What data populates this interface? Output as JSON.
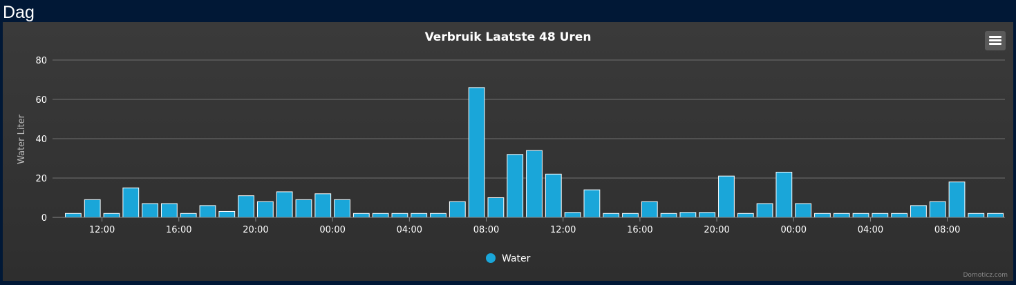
{
  "section_title": "Dag",
  "credits": "Domoticz.com",
  "menu_icon": "hamburger-menu-icon",
  "colors": {
    "bar": "#1aa6d9",
    "bar_border": "#ffffff",
    "grid": "#707070",
    "text": "#ffffff"
  },
  "chart_data": {
    "type": "bar",
    "title": "Verbruik Laatste 48 Uren",
    "ylabel": "Water Liter",
    "ylim": [
      0,
      80
    ],
    "yticks": [
      0,
      20,
      40,
      60,
      80
    ],
    "xticks": [
      "12:00",
      "16:00",
      "20:00",
      "00:00",
      "04:00",
      "08:00",
      "12:00",
      "16:00",
      "20:00",
      "00:00",
      "04:00",
      "08:00"
    ],
    "legend": "bottom-center",
    "series": [
      {
        "name": "Water",
        "values": [
          2,
          9,
          2,
          15,
          7,
          7,
          2,
          6,
          3,
          11,
          8,
          13,
          9,
          12,
          9,
          2,
          2,
          2,
          2,
          2,
          8,
          66,
          10,
          32,
          34,
          22,
          2.5,
          14,
          2,
          2,
          8,
          2,
          2.5,
          2.5,
          21,
          2,
          7,
          23,
          7,
          2,
          2,
          2,
          2,
          2,
          6,
          8,
          18,
          2,
          2
        ]
      }
    ]
  }
}
